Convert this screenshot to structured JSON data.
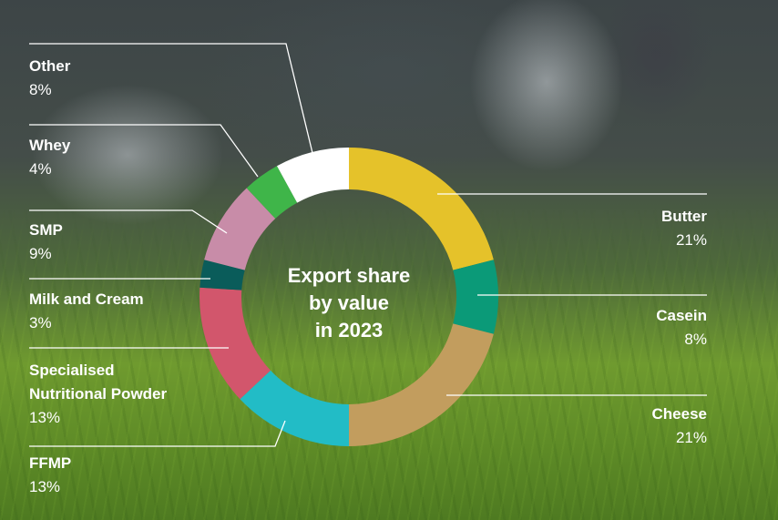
{
  "chart_data": {
    "type": "pie",
    "title": "Export share\nby value\nin 2023",
    "categories": [
      "Butter",
      "Casein",
      "Cheese",
      "FFMP",
      "Specialised\nNutritional Powder",
      "Milk and Cream",
      "SMP",
      "Whey",
      "Other"
    ],
    "values": [
      21,
      8,
      21,
      13,
      13,
      3,
      9,
      4,
      8
    ],
    "value_labels": [
      "21%",
      "8%",
      "21%",
      "13%",
      "13%",
      "3%",
      "9%",
      "4%",
      "8%"
    ],
    "colors": [
      "#e5c22a",
      "#0b9a78",
      "#c29d5e",
      "#22bcc6",
      "#d2566c",
      "#0a5c5a",
      "#c88ca8",
      "#3fb549",
      "#ffffff"
    ]
  }
}
